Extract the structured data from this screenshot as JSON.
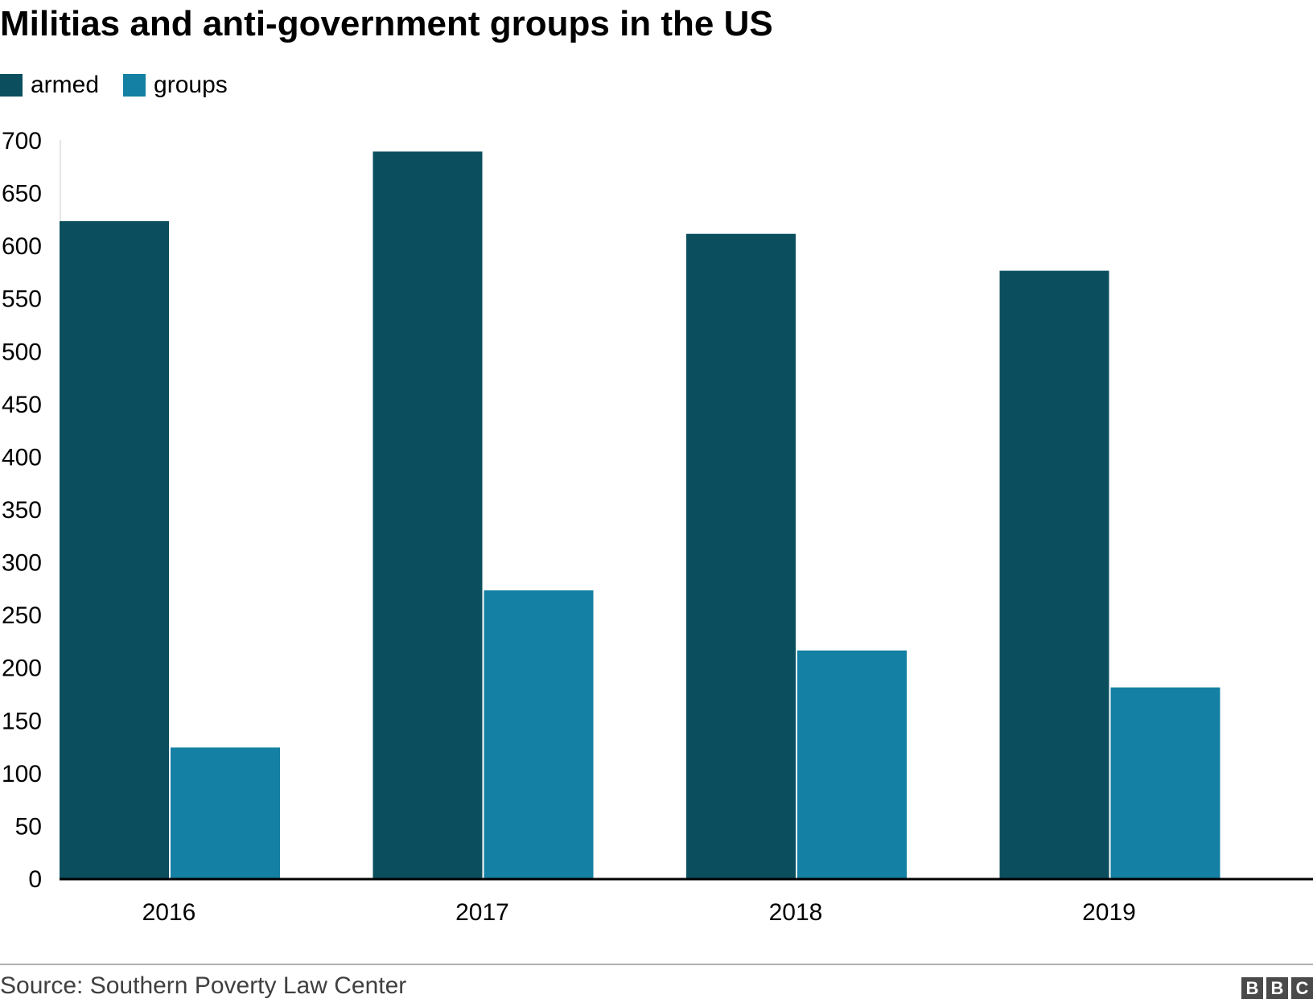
{
  "chart_data": {
    "type": "bar",
    "title": "Militias and anti-government groups in the US",
    "categories": [
      "2016",
      "2017",
      "2018",
      "2019"
    ],
    "series": [
      {
        "name": "armed",
        "color": "#0b4f5f",
        "values": [
          623,
          689,
          611,
          576
        ]
      },
      {
        "name": "groups",
        "color": "#1480a3",
        "values": [
          124,
          273,
          216,
          181
        ]
      }
    ],
    "xlabel": "",
    "ylabel": "",
    "ylim": [
      0,
      700
    ],
    "yticks": [
      "0",
      "50",
      "100",
      "150",
      "200",
      "250",
      "300",
      "350",
      "400",
      "450",
      "500",
      "550",
      "600",
      "650",
      "700"
    ],
    "grid": false,
    "legend_position": "top-left"
  },
  "source": "Source: Southern Poverty Law Center",
  "logo": [
    "B",
    "B",
    "C"
  ]
}
